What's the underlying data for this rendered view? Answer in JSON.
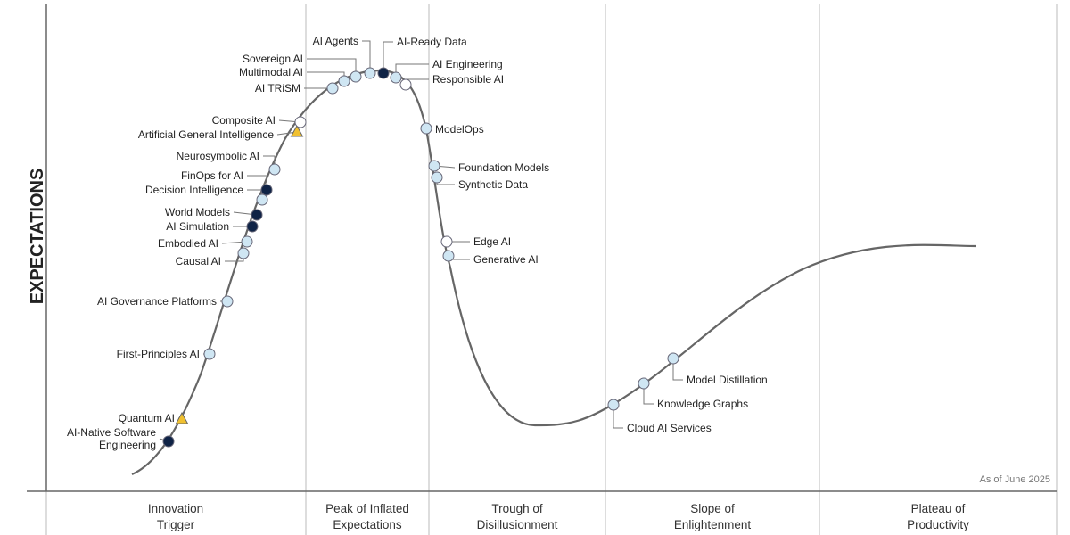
{
  "y_axis_label": "EXPECTATIONS",
  "note": "As of June 2025",
  "phases": [
    [
      "Innovation",
      "Trigger"
    ],
    [
      "Peak of Inflated",
      "Expectations"
    ],
    [
      "Trough of",
      "Disillusionment"
    ],
    [
      "Slope of",
      "Enlightenment"
    ],
    [
      "Plateau of",
      "Productivity"
    ]
  ],
  "technologies": [
    "AI-Native Software Engineering",
    "Quantum AI",
    "First-Principles AI",
    "AI Governance Platforms",
    "Causal AI",
    "Embodied AI",
    "AI Simulation",
    "World Models",
    "Decision Intelligence",
    "FinOps for AI",
    "Neurosymbolic AI",
    "Artificial General Intelligence",
    "Composite AI",
    "AI TRiSM",
    "Multimodal AI",
    "Sovereign AI",
    "AI Agents",
    "AI-Ready Data",
    "AI Engineering",
    "Responsible AI",
    "ModelOps",
    "Foundation Models",
    "Synthetic Data",
    "Edge AI",
    "Generative AI",
    "Cloud AI Services",
    "Knowledge Graphs",
    "Model Distillation"
  ]
}
